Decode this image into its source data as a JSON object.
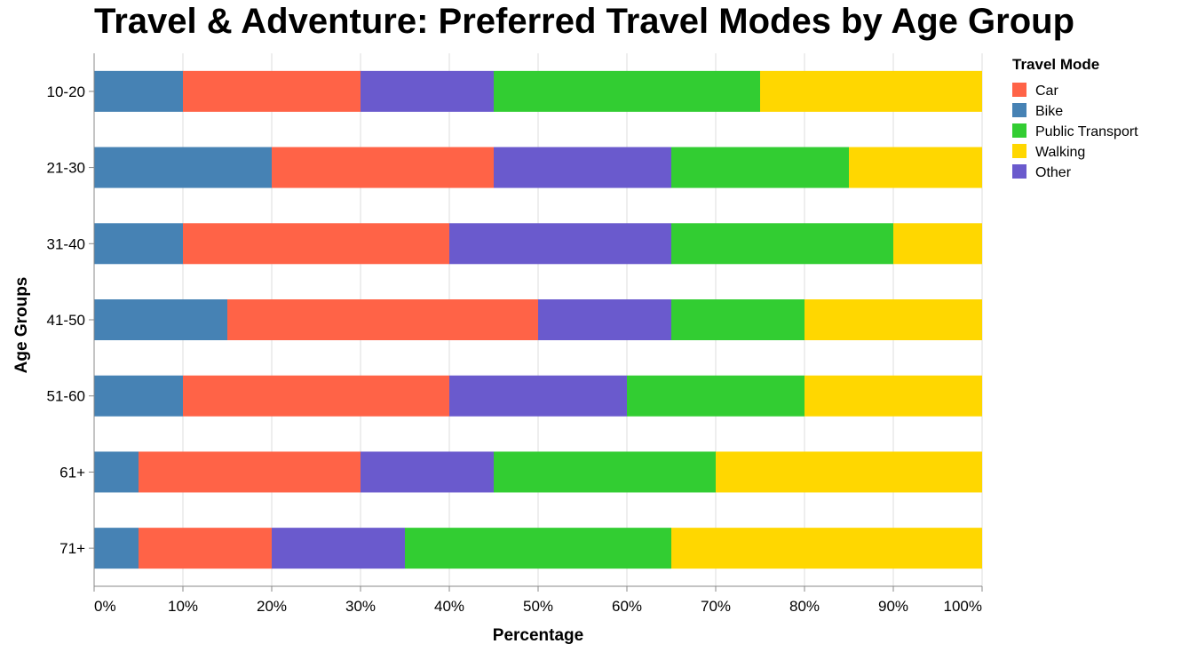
{
  "chart_data": {
    "type": "bar",
    "orientation": "horizontal",
    "stacked": "normalized",
    "title": "Travel & Adventure: Preferred Travel Modes by Age Group",
    "xlabel": "Percentage",
    "ylabel": "Age Groups",
    "xlim": [
      0,
      100
    ],
    "x_ticks": [
      "0%",
      "10%",
      "20%",
      "30%",
      "40%",
      "50%",
      "60%",
      "70%",
      "80%",
      "90%",
      "100%"
    ],
    "grid": true,
    "legend_position": "right",
    "legend_title": "Travel Mode",
    "categories": [
      "10-20",
      "21-30",
      "31-40",
      "41-50",
      "51-60",
      "61+",
      "71+"
    ],
    "stack_order": [
      "Bike",
      "Car",
      "Other",
      "Public Transport",
      "Walking"
    ],
    "legend_order": [
      "Car",
      "Bike",
      "Public Transport",
      "Walking",
      "Other"
    ],
    "series": [
      {
        "name": "Car",
        "color": "#FF6347",
        "values": [
          20,
          25,
          30,
          35,
          30,
          25,
          15
        ]
      },
      {
        "name": "Bike",
        "color": "#4682B4",
        "values": [
          10,
          20,
          10,
          15,
          10,
          5,
          5
        ]
      },
      {
        "name": "Public Transport",
        "color": "#32CD32",
        "values": [
          30,
          20,
          25,
          15,
          20,
          25,
          30
        ]
      },
      {
        "name": "Walking",
        "color": "#FFD700",
        "values": [
          25,
          15,
          10,
          20,
          20,
          30,
          35
        ]
      },
      {
        "name": "Other",
        "color": "#6A5ACD",
        "values": [
          15,
          20,
          25,
          15,
          20,
          15,
          15
        ]
      }
    ]
  }
}
